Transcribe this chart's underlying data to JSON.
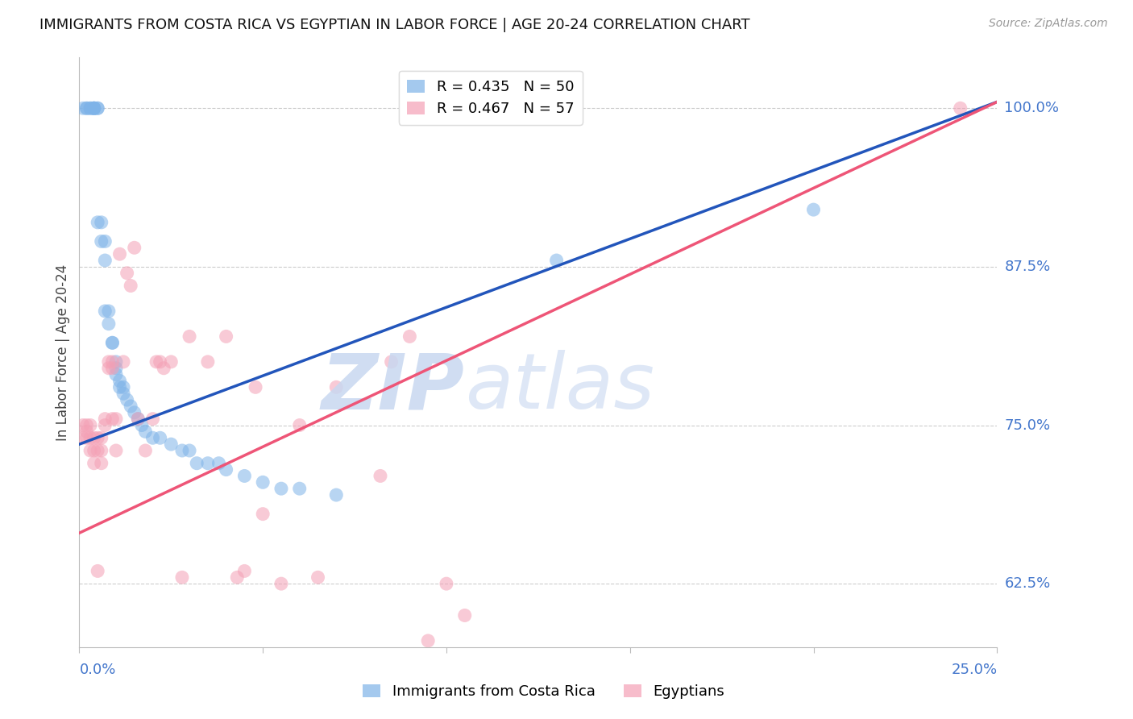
{
  "title": "IMMIGRANTS FROM COSTA RICA VS EGYPTIAN IN LABOR FORCE | AGE 20-24 CORRELATION CHART",
  "source": "Source: ZipAtlas.com",
  "ylabel": "In Labor Force | Age 20-24",
  "ytick_labels": [
    "62.5%",
    "75.0%",
    "87.5%",
    "100.0%"
  ],
  "ytick_values": [
    0.625,
    0.75,
    0.875,
    1.0
  ],
  "xmin": 0.0,
  "xmax": 0.25,
  "ymin": 0.575,
  "ymax": 1.04,
  "legend_blue_label": "R = 0.435   N = 50",
  "legend_pink_label": "R = 0.467   N = 57",
  "bottom_legend_blue": "Immigrants from Costa Rica",
  "bottom_legend_pink": "Egyptians",
  "blue_color": "#7EB3E8",
  "pink_color": "#F4A0B5",
  "blue_line_color": "#2255BB",
  "pink_line_color": "#EE5577",
  "blue_R": 0.435,
  "blue_N": 50,
  "pink_R": 0.467,
  "pink_N": 57,
  "blue_x": [
    0.001,
    0.002,
    0.002,
    0.003,
    0.003,
    0.004,
    0.004,
    0.004,
    0.004,
    0.005,
    0.005,
    0.005,
    0.006,
    0.006,
    0.007,
    0.007,
    0.007,
    0.008,
    0.008,
    0.009,
    0.009,
    0.01,
    0.01,
    0.01,
    0.011,
    0.011,
    0.012,
    0.012,
    0.013,
    0.014,
    0.015,
    0.016,
    0.017,
    0.018,
    0.02,
    0.022,
    0.025,
    0.028,
    0.03,
    0.032,
    0.035,
    0.038,
    0.04,
    0.045,
    0.05,
    0.055,
    0.06,
    0.07,
    0.13,
    0.2
  ],
  "blue_y": [
    1.0,
    1.0,
    1.0,
    1.0,
    1.0,
    1.0,
    1.0,
    1.0,
    1.0,
    1.0,
    1.0,
    0.91,
    0.91,
    0.895,
    0.895,
    0.88,
    0.84,
    0.84,
    0.83,
    0.815,
    0.815,
    0.8,
    0.795,
    0.79,
    0.785,
    0.78,
    0.78,
    0.775,
    0.77,
    0.765,
    0.76,
    0.755,
    0.75,
    0.745,
    0.74,
    0.74,
    0.735,
    0.73,
    0.73,
    0.72,
    0.72,
    0.72,
    0.715,
    0.71,
    0.705,
    0.7,
    0.7,
    0.695,
    0.88,
    0.92
  ],
  "pink_x": [
    0.001,
    0.001,
    0.002,
    0.002,
    0.002,
    0.003,
    0.003,
    0.003,
    0.004,
    0.004,
    0.004,
    0.005,
    0.005,
    0.005,
    0.006,
    0.006,
    0.006,
    0.007,
    0.007,
    0.008,
    0.008,
    0.009,
    0.009,
    0.009,
    0.01,
    0.01,
    0.011,
    0.012,
    0.013,
    0.014,
    0.015,
    0.016,
    0.018,
    0.02,
    0.021,
    0.022,
    0.023,
    0.025,
    0.028,
    0.03,
    0.035,
    0.04,
    0.043,
    0.045,
    0.048,
    0.05,
    0.055,
    0.06,
    0.065,
    0.07,
    0.082,
    0.085,
    0.09,
    0.095,
    0.1,
    0.105,
    0.24
  ],
  "pink_y": [
    0.75,
    0.74,
    0.75,
    0.745,
    0.74,
    0.75,
    0.74,
    0.73,
    0.74,
    0.73,
    0.72,
    0.74,
    0.73,
    0.635,
    0.74,
    0.73,
    0.72,
    0.755,
    0.75,
    0.8,
    0.795,
    0.8,
    0.795,
    0.755,
    0.755,
    0.73,
    0.885,
    0.8,
    0.87,
    0.86,
    0.89,
    0.755,
    0.73,
    0.755,
    0.8,
    0.8,
    0.795,
    0.8,
    0.63,
    0.82,
    0.8,
    0.82,
    0.63,
    0.635,
    0.78,
    0.68,
    0.625,
    0.75,
    0.63,
    0.78,
    0.71,
    0.8,
    0.82,
    0.58,
    0.625,
    0.6,
    1.0
  ]
}
